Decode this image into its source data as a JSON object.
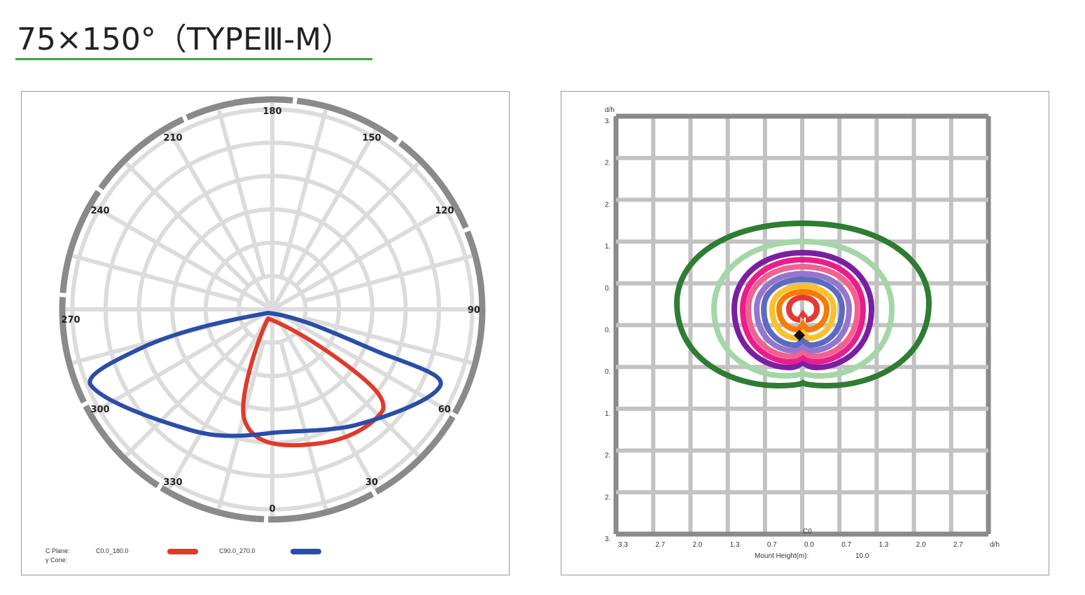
{
  "title": "75×150°（TYPEⅢ-M）",
  "colors": {
    "underline": "#3aa640",
    "red_curve": "#e03a2c",
    "blue_curve": "#2a4ea6",
    "polar_grid": "#dcdcdc",
    "outer_ring": "#8a8a8a",
    "iso_grid": "#c2c2c2",
    "iso_frame": "#8a8a8a"
  },
  "polar": {
    "angle_labels": [
      "180",
      "150",
      "120",
      "90",
      "60",
      "30",
      "0",
      "330",
      "300",
      "270",
      "240",
      "210"
    ],
    "legend": {
      "c_plane_label": "C Plane:",
      "gamma_cone_label": "γ Cone:",
      "series": [
        {
          "name": "C0.0_180.0",
          "color": "#e03a2c"
        },
        {
          "name": "C90.0_270.0",
          "color": "#2a4ea6"
        }
      ]
    }
  },
  "isolux": {
    "y_axis_unit": "d/h",
    "y_tick_labels": [
      "3.",
      "2.",
      "2.",
      "1.",
      "0.",
      "0.",
      "0.",
      "1.",
      "2.",
      "2.",
      "3."
    ],
    "x_tick_labels": [
      "3.3",
      "2.7",
      "2.0",
      "1.3",
      "0.7",
      "0.0",
      "0.7",
      "1.3",
      "2.0",
      "2.7"
    ],
    "x_axis_unit": "d/h",
    "c_label": "C0",
    "mount_height_label": "Mount Height(m):",
    "mount_height_value": "10.0",
    "contour_colors": [
      "#2e7d32",
      "#a5d6a7",
      "#7b1fa2",
      "#e91e8c",
      "#f06292",
      "#9575cd",
      "#5c6bc0",
      "#fbc02d",
      "#f57c00",
      "#e53935"
    ]
  }
}
